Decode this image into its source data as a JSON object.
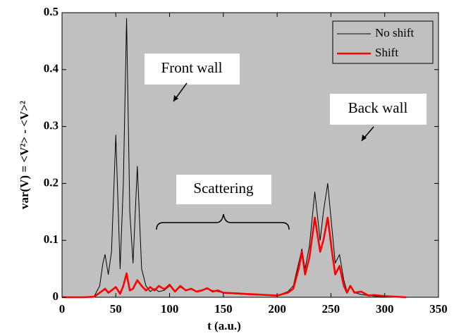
{
  "chart_data": {
    "type": "line",
    "xlabel": "t (a.u.)",
    "ylabel": "var(V) = <V²> - <V>²",
    "annotations": [
      "Front wall",
      "Back wall",
      "Scattering"
    ],
    "x": [
      0,
      20,
      30,
      35,
      38,
      40,
      43,
      46,
      50,
      54,
      57,
      60,
      63,
      66,
      70,
      74,
      78,
      82,
      86,
      90,
      95,
      100,
      105,
      110,
      115,
      120,
      125,
      130,
      135,
      140,
      145,
      150,
      160,
      170,
      180,
      190,
      200,
      210,
      215,
      220,
      223,
      226,
      230,
      235,
      240,
      243,
      247,
      251,
      254,
      258,
      262,
      265,
      268,
      272,
      278,
      285,
      290,
      300,
      320
    ],
    "series": [
      {
        "name": "No shift",
        "color": "#000000",
        "values": [
          0,
          0,
          0.002,
          0.02,
          0.06,
          0.075,
          0.04,
          0.08,
          0.285,
          0.05,
          0.2,
          0.49,
          0.15,
          0.06,
          0.23,
          0.05,
          0.02,
          0.01,
          0.015,
          0.01,
          0.012,
          0.02,
          0.01,
          0.018,
          0.012,
          0.015,
          0.01,
          0.012,
          0.015,
          0.012,
          0.01,
          0.008,
          0.006,
          0.005,
          0.004,
          0.004,
          0.003,
          0.01,
          0.02,
          0.06,
          0.085,
          0.05,
          0.09,
          0.185,
          0.1,
          0.15,
          0.2,
          0.12,
          0.06,
          0.075,
          0.03,
          0.01,
          0.02,
          0.008,
          0.005,
          0.003,
          0.002,
          0,
          0
        ]
      },
      {
        "name": "Shift",
        "color": "#ff0000",
        "values": [
          0,
          0,
          0.001,
          0.008,
          0.012,
          0.015,
          0.008,
          0.012,
          0.018,
          0.006,
          0.02,
          0.042,
          0.012,
          0.015,
          0.03,
          0.02,
          0.012,
          0.018,
          0.012,
          0.02,
          0.014,
          0.022,
          0.01,
          0.02,
          0.012,
          0.015,
          0.01,
          0.012,
          0.016,
          0.01,
          0.012,
          0.008,
          0.007,
          0.006,
          0.005,
          0.004,
          0.003,
          0.008,
          0.015,
          0.05,
          0.08,
          0.04,
          0.07,
          0.14,
          0.08,
          0.1,
          0.14,
          0.08,
          0.04,
          0.055,
          0.02,
          0.008,
          0.02,
          0.008,
          0.01,
          0.003,
          0.004,
          0.002,
          0
        ]
      }
    ],
    "xlim": [
      0,
      350
    ],
    "xticks": [
      0,
      50,
      100,
      150,
      200,
      250,
      300,
      350
    ],
    "ylim": [
      0,
      0.5
    ],
    "yticks": [
      0,
      0.1,
      0.2,
      0.3,
      0.4,
      0.5
    ],
    "legend": "upper right"
  }
}
